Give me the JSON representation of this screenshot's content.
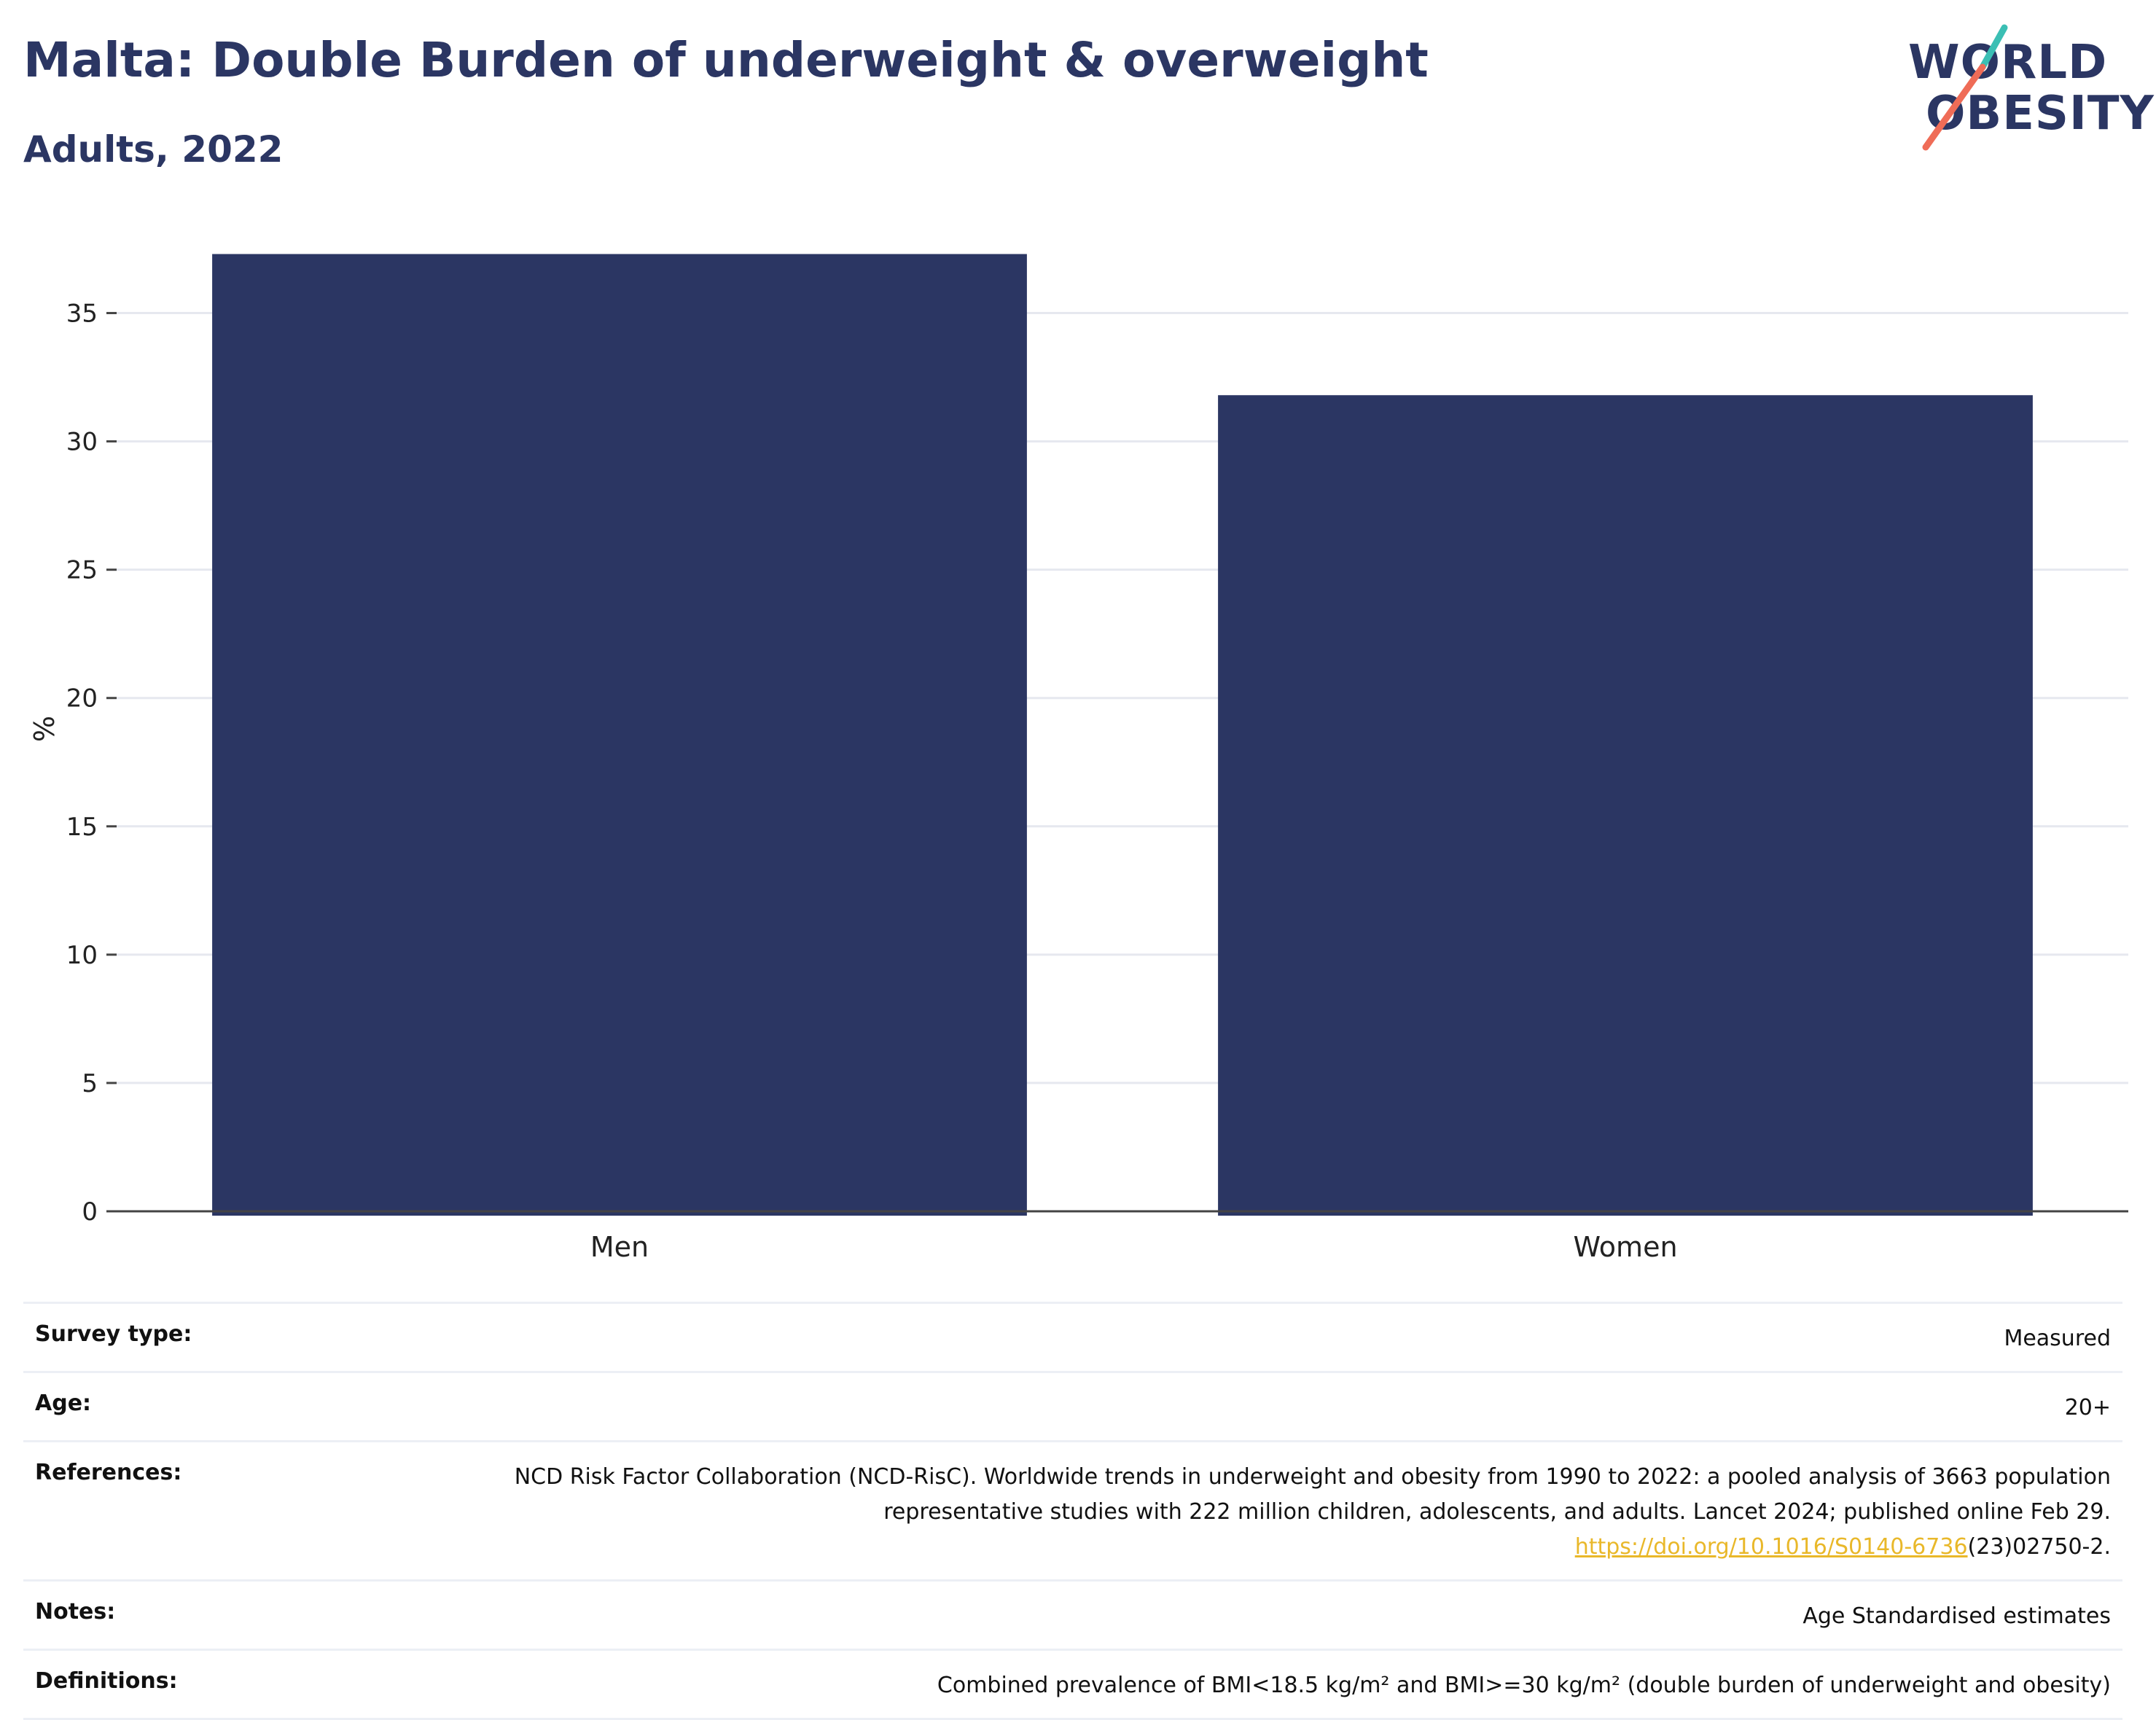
{
  "header": {
    "title": "Malta: Double Burden of underweight & overweight",
    "subtitle": "Adults, 2022"
  },
  "logo": {
    "line1": "WORLD",
    "line2": "OBESITY",
    "accent_teal": "#3bbfb4",
    "accent_coral": "#ef6c57"
  },
  "colors": {
    "bar": "#2b3663",
    "text": "#2b3663",
    "link": "#e9b82a"
  },
  "chart_data": {
    "type": "bar",
    "categories": [
      "Men",
      "Women"
    ],
    "values": [
      37.3,
      31.8
    ],
    "title": "Malta: Double Burden of underweight & overweight",
    "subtitle": "Adults, 2022",
    "xlabel": "",
    "ylabel": "%",
    "ylim": [
      0,
      37.6
    ],
    "yticks": [
      0,
      5,
      10,
      15,
      20,
      25,
      30,
      35
    ],
    "grid": true,
    "legend": "none"
  },
  "meta": {
    "rows": [
      {
        "label": "Survey type:",
        "value": "Measured"
      },
      {
        "label": "Age:",
        "value": "20+"
      },
      {
        "label": "References:",
        "value": "NCD Risk Factor Collaboration (NCD-RisC). Worldwide trends in underweight and obesity from 1990 to 2022: a pooled analysis of 3663 population representative studies with 222 million children, adolescents, and adults. Lancet 2024; published online Feb 29.",
        "link_text": "https://doi.org/10.1016/S0140-6736",
        "link_suffix": "(23)02750-2."
      },
      {
        "label": "Notes:",
        "value": "Age Standardised estimates"
      },
      {
        "label": "Definitions:",
        "value": "Combined prevalence of BMI<18.5 kg/m² and BMI>=30 kg/m² (double burden of underweight and obesity)"
      }
    ]
  }
}
